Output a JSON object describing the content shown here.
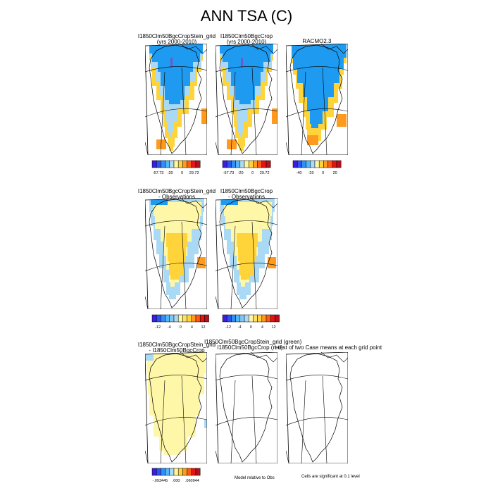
{
  "figure": {
    "title": "ANN TSA (C)"
  },
  "colors": {
    "deep_blue": "#1e9bf0",
    "light_blue": "#a9d9f5",
    "pale_yellow": "#fff7a8",
    "yellow": "#ffd43b",
    "orange": "#ff9a1f",
    "purple_line": "#6a5acd",
    "outline": "#000000"
  },
  "panels": [
    {
      "id": "p1",
      "title_line1": "I1850Clm50BgcCropStein_grid",
      "title_line2": "(yrs 2000-2010)",
      "style": "absolute"
    },
    {
      "id": "p2",
      "title_line1": "I1850Clm50BgcCrop",
      "title_line2": "(yrs 2000-2010)",
      "style": "absolute"
    },
    {
      "id": "p3",
      "title_line1": "RACMO2.3",
      "title_line2": "",
      "style": "racmo"
    },
    {
      "id": "p4",
      "title_line1": "I1850Clm50BgcCropStein_grid",
      "title_line2": "- Observations",
      "style": "bias"
    },
    {
      "id": "p5",
      "title_line1": "I1850Clm50BgcCrop",
      "title_line2": "- Observations",
      "style": "bias"
    },
    {
      "id": "p6",
      "title_line1": "I1850Clm50BgcCropStein_grid",
      "title_line2": "- I1850Clm50BgcCrop",
      "style": "diff"
    },
    {
      "id": "p7",
      "title_line1": "I1850Clm50BgcCropStein_grid (green)",
      "title_line2": "I1850Clm50BgcCrop (red)",
      "style": "blank"
    },
    {
      "id": "p8",
      "title_line1": "t-test of two Case means at each grid point",
      "title_line2": "",
      "style": "blank"
    }
  ],
  "colorbars": [
    {
      "id": "cb1",
      "labels": [
        "-57.73",
        "-20",
        "0",
        "29.72"
      ],
      "colors": [
        "#3d1ee0",
        "#2a55f2",
        "#2f8ff7",
        "#52b6f7",
        "#a7dbf7",
        "#fff6a3",
        "#ffd43b",
        "#ff9a1f",
        "#ff5a14",
        "#e81414",
        "#b5121b"
      ]
    },
    {
      "id": "cb2",
      "labels": [
        "-57.73",
        "-20",
        "0",
        "29.72"
      ],
      "colors": [
        "#3d1ee0",
        "#2a55f2",
        "#2f8ff7",
        "#52b6f7",
        "#a7dbf7",
        "#fff6a3",
        "#ffd43b",
        "#ff9a1f",
        "#ff5a14",
        "#e81414",
        "#b5121b"
      ]
    },
    {
      "id": "cb3",
      "labels": [
        "-40",
        "-20",
        "0",
        "20"
      ],
      "colors": [
        "#3d1ee0",
        "#2a55f2",
        "#2f8ff7",
        "#52b6f7",
        "#a7dbf7",
        "#fff6a3",
        "#ffd43b",
        "#ff9a1f",
        "#ff5a14",
        "#e81414",
        "#b5121b"
      ]
    },
    {
      "id": "cb4",
      "labels": [
        "-12",
        "-4",
        "0",
        "4",
        "12"
      ],
      "colors": [
        "#3d1ee0",
        "#2a55f2",
        "#2f8ff7",
        "#52b6f7",
        "#7ec8f7",
        "#a7dbf7",
        "#fff6a3",
        "#ffe066",
        "#ffd43b",
        "#ff9a1f",
        "#ff5a14",
        "#e81414",
        "#b5121b"
      ]
    },
    {
      "id": "cb5",
      "labels": [
        "-12",
        "-4",
        "0",
        "4",
        "12"
      ],
      "colors": [
        "#3d1ee0",
        "#2a55f2",
        "#2f8ff7",
        "#52b6f7",
        "#7ec8f7",
        "#a7dbf7",
        "#fff6a3",
        "#ffe066",
        "#ffd43b",
        "#ff9a1f",
        "#ff5a14",
        "#e81414",
        "#b5121b"
      ]
    },
    {
      "id": "cb6",
      "labels": [
        "-.093445",
        ".000",
        ".060944"
      ],
      "colors": [
        "#3d1ee0",
        "#2a55f2",
        "#2f8ff7",
        "#52b6f7",
        "#a7dbf7",
        "#fff6a3",
        "#ffd43b",
        "#ff9a1f",
        "#ff5a14",
        "#e81414",
        "#b5121b"
      ]
    }
  ],
  "notes": {
    "model_relative": "Model relative to Obs",
    "significance": "Cells are significant at 0.1 level"
  },
  "chart_data": {
    "type": "heatmap",
    "title": "ANN TSA (C)",
    "panels": [
      {
        "title": "I1850Clm50BgcCropStein_grid (yrs 2000-2010)",
        "colorbar_min": -57.73,
        "colorbar_max": 29.72,
        "colorbar_ticks": [
          -57.73,
          -20,
          0,
          29.72
        ]
      },
      {
        "title": "I1850Clm50BgcCrop (yrs 2000-2010)",
        "colorbar_min": -57.73,
        "colorbar_max": 29.72,
        "colorbar_ticks": [
          -57.73,
          -20,
          0,
          29.72
        ]
      },
      {
        "title": "RACMO2.3",
        "colorbar_ticks": [
          -40,
          -20,
          0,
          20
        ]
      },
      {
        "title": "I1850Clm50BgcCropStein_grid - Observations",
        "colorbar_ticks": [
          -12,
          -4,
          0,
          4,
          12
        ]
      },
      {
        "title": "I1850Clm50BgcCrop - Observations",
        "colorbar_ticks": [
          -12,
          -4,
          0,
          4,
          12
        ]
      },
      {
        "title": "I1850Clm50BgcCropStein_grid - I1850Clm50BgcCrop",
        "colorbar_min": -0.093445,
        "colorbar_max": 0.060944,
        "colorbar_ticks": [
          -0.093445,
          0.0,
          0.060944
        ]
      },
      {
        "title": "I1850Clm50BgcCropStein_grid (green) I1850Clm50BgcCrop (red)"
      },
      {
        "title": "t-test of two Case means at each grid point"
      }
    ]
  }
}
